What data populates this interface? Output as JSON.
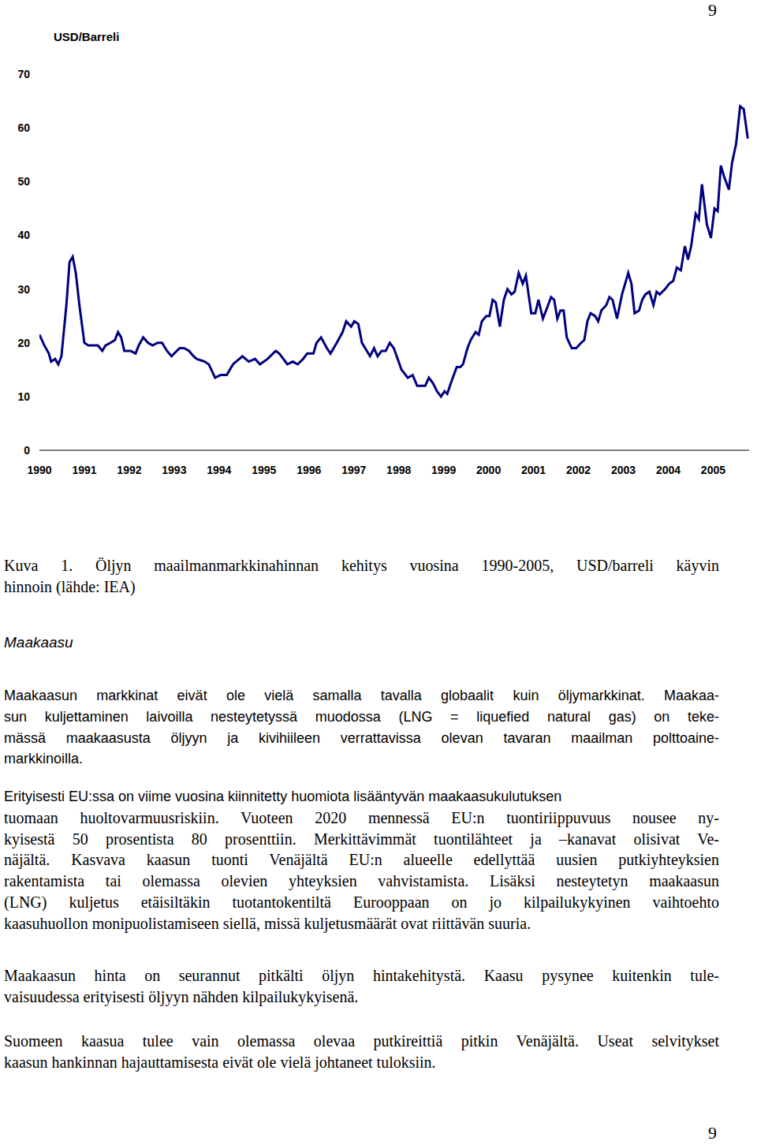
{
  "page_number_top": "9",
  "chart_data": {
    "type": "line",
    "y_label": "USD/Barreli",
    "x": [
      1990.0,
      1990.11,
      1990.21,
      1990.26,
      1990.35,
      1990.42,
      1990.49,
      1990.6,
      1990.67,
      1990.74,
      1990.81,
      1990.89,
      1991.0,
      1991.09,
      1991.19,
      1991.3,
      1991.4,
      1991.47,
      1991.58,
      1991.68,
      1991.75,
      1991.82,
      1991.89,
      1992.03,
      1992.14,
      1992.21,
      1992.31,
      1992.42,
      1992.52,
      1992.63,
      1992.73,
      1992.84,
      1992.94,
      1993.12,
      1993.22,
      1993.33,
      1993.43,
      1993.5,
      1993.68,
      1993.77,
      1993.91,
      1994.03,
      1994.17,
      1994.31,
      1994.52,
      1994.66,
      1994.8,
      1994.91,
      1995.08,
      1995.26,
      1995.34,
      1995.52,
      1995.64,
      1995.75,
      1995.87,
      1995.96,
      1996.1,
      1996.17,
      1996.27,
      1996.4,
      1996.48,
      1996.62,
      1996.75,
      1996.83,
      1996.94,
      1997.01,
      1997.1,
      1997.18,
      1997.36,
      1997.45,
      1997.53,
      1997.62,
      1997.71,
      1997.8,
      1997.89,
      1998.06,
      1998.2,
      1998.31,
      1998.41,
      1998.59,
      1998.67,
      1998.76,
      1998.85,
      1998.94,
      1999.02,
      1999.08,
      1999.16,
      1999.29,
      1999.37,
      1999.43,
      1999.53,
      1999.6,
      1999.71,
      1999.78,
      1999.85,
      1999.95,
      2000.02,
      2000.09,
      2000.16,
      2000.25,
      2000.34,
      2000.42,
      2000.51,
      2000.58,
      2000.67,
      2000.76,
      2000.83,
      2000.95,
      2001.04,
      2001.11,
      2001.21,
      2001.28,
      2001.39,
      2001.46,
      2001.53,
      2001.6,
      2001.67,
      2001.74,
      2001.85,
      2001.95,
      2002.06,
      2002.13,
      2002.2,
      2002.27,
      2002.37,
      2002.44,
      2002.51,
      2002.62,
      2002.69,
      2002.76,
      2002.86,
      2002.97,
      2003.04,
      2003.11,
      2003.18,
      2003.25,
      2003.35,
      2003.42,
      2003.49,
      2003.58,
      2003.67,
      2003.74,
      2003.81,
      2003.93,
      2004.02,
      2004.11,
      2004.19,
      2004.28,
      2004.37,
      2004.44,
      2004.51,
      2004.61,
      2004.68,
      2004.75,
      2004.86,
      2004.95,
      2005.03,
      2005.1,
      2005.17,
      2005.24,
      2005.35,
      2005.42,
      2005.51,
      2005.6,
      2005.68,
      2005.77
    ],
    "values": [
      21.5,
      19.5,
      18,
      16.5,
      17,
      16,
      17.5,
      27,
      35,
      36,
      33,
      27,
      20,
      19.5,
      19.5,
      19.5,
      18.5,
      19.5,
      20,
      20.5,
      22,
      21,
      18.5,
      18.5,
      18,
      19.5,
      21,
      20,
      19.5,
      20,
      20,
      18.5,
      17.5,
      19,
      19,
      18.5,
      17.5,
      17,
      16.5,
      16,
      13.5,
      14,
      14,
      16,
      17.5,
      16.5,
      17,
      16,
      17,
      18.5,
      18,
      16,
      16.5,
      16,
      17,
      18,
      18,
      20,
      21,
      19,
      18,
      20,
      22,
      24,
      23,
      24,
      23.5,
      20,
      17.5,
      19,
      17.5,
      18.5,
      18.5,
      20,
      19,
      15,
      13.5,
      14,
      12,
      12,
      13.5,
      12.5,
      11,
      10,
      11,
      10.5,
      12.5,
      15.5,
      15.5,
      16,
      19,
      20.5,
      22,
      21.5,
      24,
      25,
      25,
      28,
      27.5,
      23,
      28,
      30,
      29,
      29.5,
      33,
      31,
      32.5,
      25.5,
      25.5,
      28,
      24.5,
      26,
      28.5,
      28,
      24.5,
      26,
      26,
      21,
      19,
      19,
      20,
      20.5,
      24,
      25.5,
      25,
      24,
      26,
      27,
      28.5,
      28,
      24.5,
      29,
      31,
      33,
      31,
      25.5,
      26,
      28,
      29,
      29.5,
      27,
      29.5,
      29,
      30,
      31,
      31.5,
      34,
      33.5,
      38,
      35.5,
      38,
      44,
      43,
      49.5,
      42,
      39.5,
      45,
      44.5,
      53,
      51,
      48.5,
      53.5,
      57,
      64,
      63.5,
      58
    ],
    "color": "#000080",
    "xlim": [
      1990,
      2005.8
    ],
    "xticks": [
      1990,
      1991,
      1992,
      1993,
      1994,
      1995,
      1996,
      1997,
      1998,
      1999,
      2000,
      2001,
      2002,
      2003,
      2004,
      2005
    ],
    "ylim": [
      0,
      70
    ],
    "yticks": [
      0,
      10,
      20,
      30,
      40,
      50,
      60,
      70
    ],
    "grid": false
  },
  "caption": [
    "Kuva 1. Öljyn maailmanmarkkinahinnan kehitys vuosina 1990-2005, USD/barreli käyvin",
    "hinnoin (lähde: IEA)"
  ],
  "heading": "Maakaasu",
  "paragraphs": [
    [
      "Maakaasun markkinat eivät ole vielä samalla tavalla globaalit kuin öljymarkkinat. Maakaa-",
      "sun kuljettaminen laivoilla nesteytetyssä muodossa (LNG = liquefied natural gas) on teke-",
      "mässä maakaasusta öljyyn ja kivihiileen verrattavissa olevan tavaran maailman polttoaine-",
      "markkinoilla."
    ],
    [
      "Erityisesti EU:ssa on viime vuosina kiinnitetty huomiota lisääntyvän maakaasukulutuksen",
      "tuomaan huoltovarmuusriskiin. Vuoteen 2020 mennessä EU:n tuontiriippuvuus nousee ny-",
      "kyisestä 50 prosentista 80 prosenttiin. Merkittävimmät tuontilähteet ja –kanavat olisivat Ve-",
      "näjältä. Kasvava kaasun tuonti Venäjältä EU:n alueelle edellyttää uusien putkiyhteyksien",
      "rakentamista tai olemassa olevien yhteyksien vahvistamista. Lisäksi nesteytetyn maakaasun",
      "(LNG) kuljetus etäisiltäkin tuotantokentiltä Eurooppaan on jo kilpailukykyinen vaihtoehto",
      "kaasuhuollon monipuolistamiseen siellä, missä kuljetusmäärät ovat riittävän suuria."
    ],
    [
      "Maakaasun hinta on seurannut pitkälti öljyn hintakehitystä. Kaasu pysynee kuitenkin tule-",
      "vaisuudessa erityisesti öljyyn nähden kilpailukykyisenä."
    ],
    [
      "Suomeen kaasua tulee vain olemassa olevaa putkireittiä pitkin Venäjältä. Useat selvitykset",
      "kaasun hankinnan hajauttamisesta eivät ole vielä johtaneet tuloksiin."
    ]
  ],
  "page_number_bottom": "9"
}
